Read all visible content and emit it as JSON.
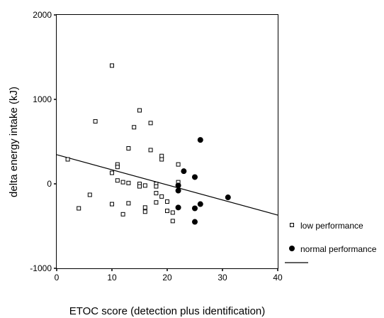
{
  "chart_data": {
    "type": "scatter",
    "xlabel": "ETOC score (detection plus identification)",
    "ylabel": "delta energy intake (kJ)",
    "xlim": [
      0,
      40
    ],
    "ylim": [
      -1000,
      2000
    ],
    "x_ticks": [
      0,
      10,
      20,
      30,
      40
    ],
    "y_ticks": [
      -1000,
      0,
      1000,
      2000
    ],
    "grid": false,
    "legend_position": "right",
    "series": [
      {
        "name": "low performance",
        "marker": "open-square",
        "color": "#000000",
        "points": [
          {
            "x": 2,
            "y": 290
          },
          {
            "x": 4,
            "y": -290
          },
          {
            "x": 6,
            "y": -130
          },
          {
            "x": 7,
            "y": 740
          },
          {
            "x": 10,
            "y": 1400
          },
          {
            "x": 10,
            "y": 130
          },
          {
            "x": 10,
            "y": -240
          },
          {
            "x": 11,
            "y": 230
          },
          {
            "x": 11,
            "y": 200
          },
          {
            "x": 11,
            "y": 40
          },
          {
            "x": 12,
            "y": 20
          },
          {
            "x": 12,
            "y": -360
          },
          {
            "x": 13,
            "y": 420
          },
          {
            "x": 13,
            "y": 10
          },
          {
            "x": 13,
            "y": -230
          },
          {
            "x": 14,
            "y": 670
          },
          {
            "x": 15,
            "y": 870
          },
          {
            "x": 15,
            "y": 0
          },
          {
            "x": 15,
            "y": -30
          },
          {
            "x": 16,
            "y": -20
          },
          {
            "x": 16,
            "y": -280
          },
          {
            "x": 16,
            "y": -330
          },
          {
            "x": 17,
            "y": 720
          },
          {
            "x": 17,
            "y": 400
          },
          {
            "x": 18,
            "y": 0
          },
          {
            "x": 18,
            "y": -30
          },
          {
            "x": 18,
            "y": -110
          },
          {
            "x": 18,
            "y": -220
          },
          {
            "x": 19,
            "y": 330
          },
          {
            "x": 19,
            "y": 290
          },
          {
            "x": 19,
            "y": -150
          },
          {
            "x": 20,
            "y": -210
          },
          {
            "x": 20,
            "y": -320
          },
          {
            "x": 21,
            "y": -340
          },
          {
            "x": 21,
            "y": -440
          },
          {
            "x": 22,
            "y": 230
          },
          {
            "x": 22,
            "y": 20
          }
        ]
      },
      {
        "name": "normal performance",
        "marker": "filled-circle",
        "color": "#000000",
        "points": [
          {
            "x": 22,
            "y": -20
          },
          {
            "x": 22,
            "y": -80
          },
          {
            "x": 22,
            "y": -280
          },
          {
            "x": 23,
            "y": 150
          },
          {
            "x": 25,
            "y": 80
          },
          {
            "x": 25,
            "y": -290
          },
          {
            "x": 25,
            "y": -450
          },
          {
            "x": 26,
            "y": 520
          },
          {
            "x": 26,
            "y": -240
          },
          {
            "x": 31,
            "y": -160
          }
        ]
      }
    ],
    "fit_line": {
      "type": "linear",
      "from": {
        "x": 0,
        "y": 345
      },
      "to": {
        "x": 40,
        "y": -370
      }
    }
  }
}
